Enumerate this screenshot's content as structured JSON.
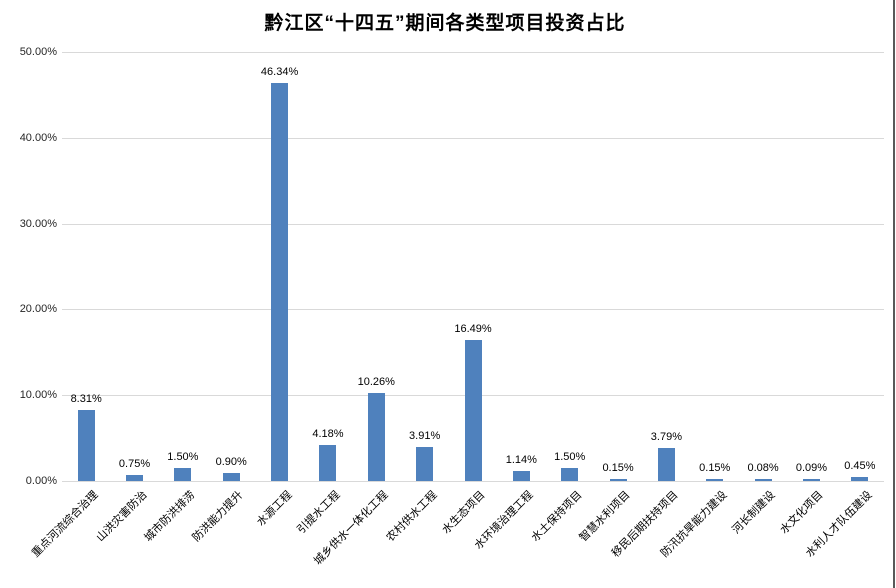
{
  "chart_data": {
    "type": "bar",
    "title": "黔江区“十四五”期间各类型项目投资占比",
    "categories": [
      "重点河流综合治理",
      "山洪灾害防治",
      "城市防洪排涝",
      "防洪能力提升",
      "水源工程",
      "引提水工程",
      "城乡供水一体化工程",
      "农村供水工程",
      "水生态项目",
      "水环境治理工程",
      "水土保持项目",
      "智慧水利项目",
      "移民后期扶持项目",
      "防汛抗旱能力建设",
      "河长制建设",
      "水文化项目",
      "水利人才队伍建设"
    ],
    "values": [
      8.31,
      0.75,
      1.5,
      0.9,
      46.34,
      4.18,
      10.26,
      3.91,
      16.49,
      1.14,
      1.5,
      0.15,
      3.79,
      0.15,
      0.08,
      0.09,
      0.45
    ],
    "data_labels": [
      "8.31%",
      "0.75%",
      "1.50%",
      "0.90%",
      "46.34%",
      "4.18%",
      "10.26%",
      "3.91%",
      "16.49%",
      "1.14%",
      "1.50%",
      "0.15%",
      "3.79%",
      "0.15%",
      "0.08%",
      "0.09%",
      "0.45%"
    ],
    "yticks": [
      "0.00%",
      "10.00%",
      "20.00%",
      "30.00%",
      "40.00%",
      "50.00%"
    ],
    "xlabel": "",
    "ylabel": "",
    "ylim": [
      0,
      50
    ],
    "grid": true,
    "legend": "none",
    "bar_color": "#4F81BD",
    "gridline_color": "#D9D9D9",
    "text_color": "#262626"
  }
}
